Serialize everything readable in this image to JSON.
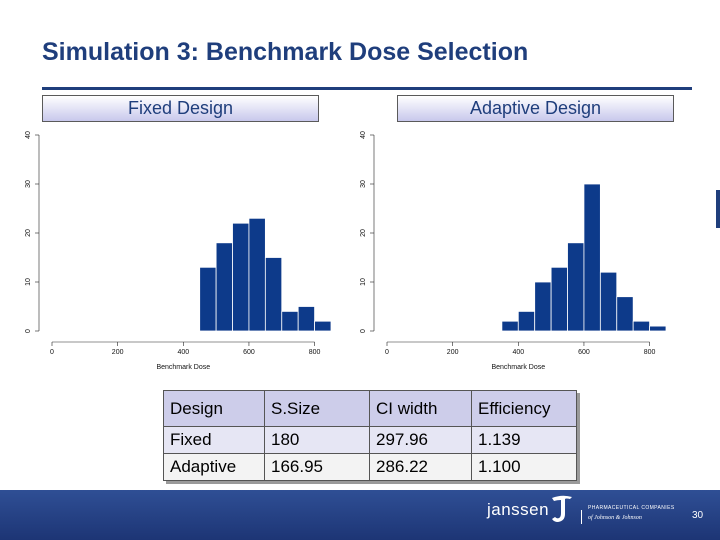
{
  "title": "Simulation 3: Benchmark Dose Selection",
  "panels": {
    "fixed_label": "Fixed Design",
    "adaptive_label": "Adaptive Design"
  },
  "chart_data": [
    {
      "type": "bar",
      "name": "Fixed Design",
      "xlabel": "Benchmark Dose",
      "ylabel": "",
      "xlim": [
        0,
        850
      ],
      "ylim": [
        0,
        40
      ],
      "xticks": [
        0,
        200,
        400,
        600,
        800
      ],
      "yticks": [
        0,
        10,
        20,
        30,
        40
      ],
      "bin_edges": [
        450,
        500,
        550,
        600,
        650,
        700,
        750,
        800,
        850
      ],
      "values": [
        13,
        18,
        22,
        23,
        15,
        4,
        5,
        2
      ]
    },
    {
      "type": "bar",
      "name": "Adaptive Design",
      "xlabel": "Benchmark Dose",
      "ylabel": "",
      "xlim": [
        0,
        850
      ],
      "ylim": [
        0,
        40
      ],
      "xticks": [
        0,
        200,
        400,
        600,
        800
      ],
      "yticks": [
        0,
        10,
        20,
        30,
        40
      ],
      "bin_edges": [
        350,
        400,
        450,
        500,
        550,
        600,
        650,
        700,
        750,
        800,
        850
      ],
      "values": [
        2,
        4,
        10,
        13,
        18,
        30,
        12,
        7,
        2,
        1
      ]
    }
  ],
  "table": {
    "headers": [
      "Design",
      "S.Size",
      "CI width",
      "Efficiency"
    ],
    "rows": [
      [
        "Fixed",
        "180",
        "297.96",
        "1.139"
      ],
      [
        "Adaptive",
        "166.95",
        "286.22",
        "1.100"
      ]
    ]
  },
  "footer": {
    "brand": "janssen",
    "tagline": "PHARMACEUTICAL COMPANIES",
    "parent": "of Johnson & Johnson",
    "page_number": "30"
  },
  "colors": {
    "title": "#1f3e7c",
    "bar": "#0d3a8a",
    "footer": "#23407f"
  }
}
